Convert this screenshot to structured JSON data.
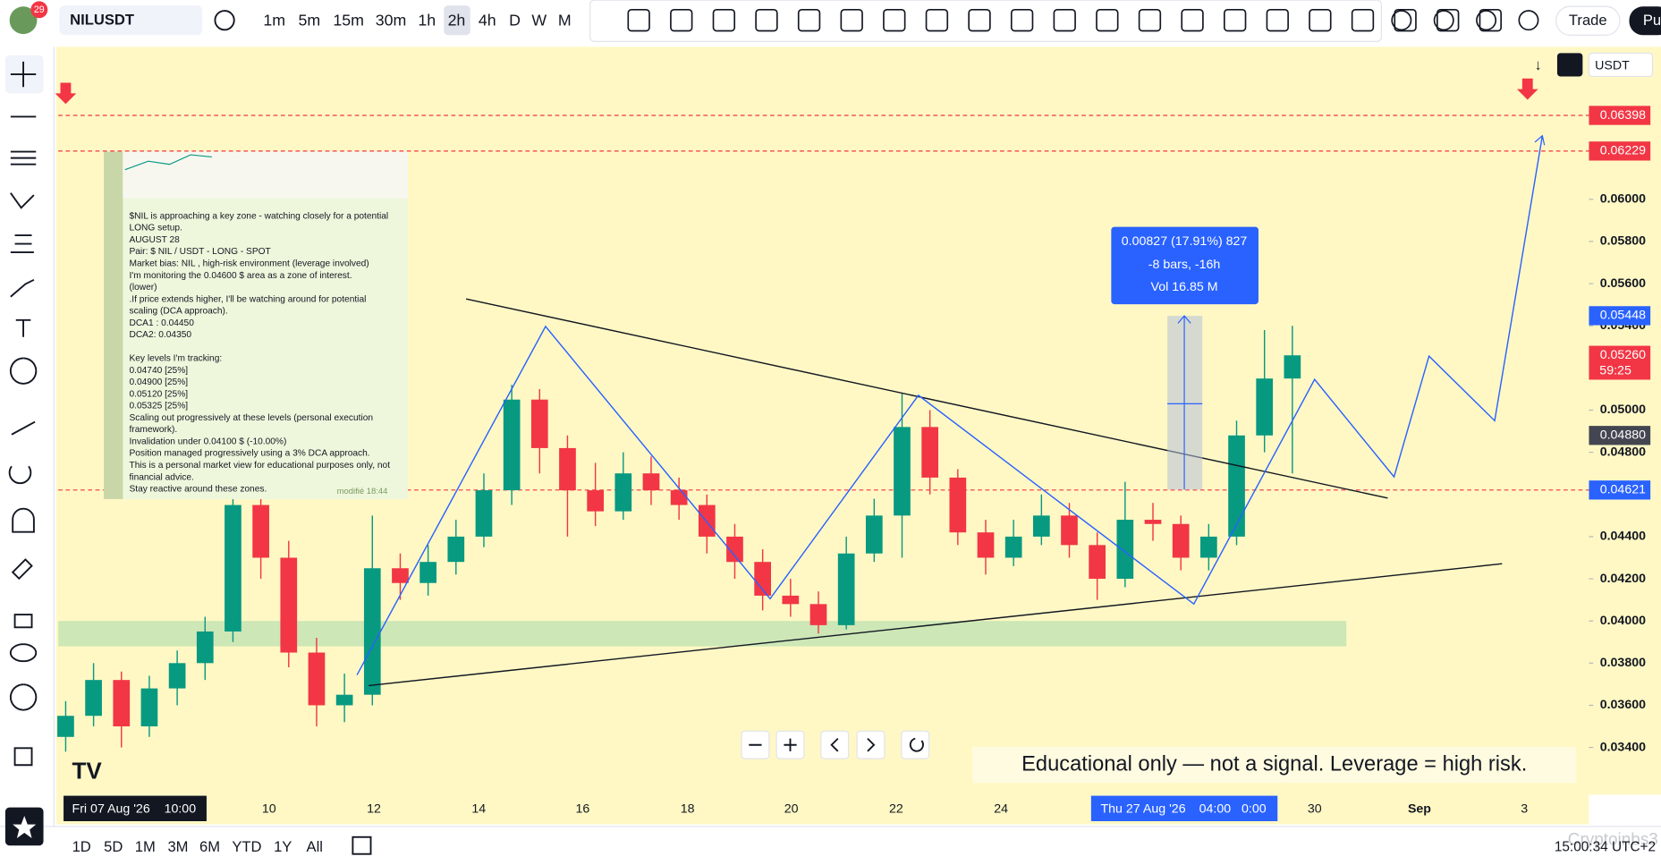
{
  "toolbar": {
    "badge": "29",
    "symbol": "NILUSDT",
    "intervals": [
      "1m",
      "5m",
      "15m",
      "30m",
      "1h",
      "2h",
      "4h",
      "D",
      "W",
      "M"
    ],
    "trade": "Trade",
    "publish": "Pu"
  },
  "chart": {
    "currency": "USDT",
    "price_ticks": [
      {
        "value": 0.06,
        "label": "0.06000"
      },
      {
        "value": 0.058,
        "label": "0.05800"
      },
      {
        "value": 0.056,
        "label": "0.05600"
      },
      {
        "value": 0.054,
        "label": "0.05400"
      },
      {
        "value": 0.05,
        "label": "0.05000"
      },
      {
        "value": 0.048,
        "label": "0.04800"
      },
      {
        "value": 0.044,
        "label": "0.04400"
      },
      {
        "value": 0.042,
        "label": "0.04200"
      },
      {
        "value": 0.04,
        "label": "0.04000"
      },
      {
        "value": 0.038,
        "label": "0.03800"
      },
      {
        "value": 0.036,
        "label": "0.03600"
      },
      {
        "value": 0.034,
        "label": "0.03400"
      }
    ],
    "price_tags": [
      {
        "value": 0.06398,
        "label": "0.06398",
        "color": "#f23645"
      },
      {
        "value": 0.06229,
        "label": "0.06229",
        "color": "#f23645"
      },
      {
        "value": 0.05448,
        "label": "0.05448",
        "color": "#2962ff"
      },
      {
        "value": 0.0526,
        "label": "0.05260",
        "color": "#f23645"
      },
      {
        "value": 0.0488,
        "label": "0.04880",
        "color": "#434651"
      },
      {
        "value": 0.04621,
        "label": "0.04621",
        "color": "#2962ff"
      }
    ],
    "countdown": "59:25",
    "time_labels": [
      "10",
      "12",
      "14",
      "16",
      "18",
      "20",
      "22",
      "24",
      "30",
      "Sep",
      "3"
    ],
    "cursor_left": {
      "date": "Fri 07 Aug '26",
      "time": "10:00"
    },
    "cursor_right": {
      "date": "Thu 27 Aug '26",
      "time": "04:00",
      "extra": "0:00"
    },
    "up_color": "#089981",
    "down_color": "#f23645",
    "candles": [
      [
        0.0345,
        0.0362,
        0.0338,
        0.0355
      ],
      [
        0.0355,
        0.038,
        0.035,
        0.0372
      ],
      [
        0.0372,
        0.0376,
        0.034,
        0.035
      ],
      [
        0.035,
        0.0374,
        0.0345,
        0.0368
      ],
      [
        0.0368,
        0.0386,
        0.036,
        0.038
      ],
      [
        0.038,
        0.0402,
        0.0372,
        0.0395
      ],
      [
        0.0395,
        0.0505,
        0.039,
        0.0455
      ],
      [
        0.0455,
        0.05,
        0.042,
        0.043
      ],
      [
        0.043,
        0.0438,
        0.0378,
        0.0385
      ],
      [
        0.0385,
        0.0392,
        0.035,
        0.036
      ],
      [
        0.036,
        0.0375,
        0.0352,
        0.0365
      ],
      [
        0.0365,
        0.045,
        0.036,
        0.0425
      ],
      [
        0.0425,
        0.0432,
        0.041,
        0.0418
      ],
      [
        0.0418,
        0.0436,
        0.0412,
        0.0428
      ],
      [
        0.0428,
        0.0448,
        0.0422,
        0.044
      ],
      [
        0.044,
        0.047,
        0.0435,
        0.0462
      ],
      [
        0.0462,
        0.0512,
        0.0455,
        0.0505
      ],
      [
        0.0505,
        0.051,
        0.047,
        0.0482
      ],
      [
        0.0482,
        0.0488,
        0.044,
        0.0462
      ],
      [
        0.0462,
        0.0475,
        0.0445,
        0.0452
      ],
      [
        0.0452,
        0.048,
        0.0448,
        0.047
      ],
      [
        0.047,
        0.0478,
        0.0455,
        0.0462
      ],
      [
        0.0462,
        0.0468,
        0.0448,
        0.0455
      ],
      [
        0.0455,
        0.046,
        0.0432,
        0.044
      ],
      [
        0.044,
        0.0446,
        0.042,
        0.0428
      ],
      [
        0.0428,
        0.0434,
        0.0405,
        0.0412
      ],
      [
        0.0412,
        0.042,
        0.0402,
        0.0408
      ],
      [
        0.0408,
        0.0414,
        0.0394,
        0.0398
      ],
      [
        0.0398,
        0.044,
        0.0396,
        0.0432
      ],
      [
        0.0432,
        0.0458,
        0.0428,
        0.045
      ],
      [
        0.045,
        0.0508,
        0.043,
        0.0492
      ],
      [
        0.0492,
        0.05,
        0.046,
        0.0468
      ],
      [
        0.0468,
        0.0472,
        0.0436,
        0.0442
      ],
      [
        0.0442,
        0.0448,
        0.0422,
        0.043
      ],
      [
        0.043,
        0.0448,
        0.0426,
        0.044
      ],
      [
        0.044,
        0.046,
        0.0436,
        0.045
      ],
      [
        0.045,
        0.0456,
        0.043,
        0.0436
      ],
      [
        0.0436,
        0.0442,
        0.041,
        0.042
      ],
      [
        0.042,
        0.0466,
        0.0416,
        0.0448
      ],
      [
        0.0448,
        0.0456,
        0.0438,
        0.0446
      ],
      [
        0.0446,
        0.045,
        0.0424,
        0.043
      ],
      [
        0.043,
        0.0446,
        0.0424,
        0.044
      ],
      [
        0.044,
        0.0495,
        0.0436,
        0.0488
      ],
      [
        0.0488,
        0.0538,
        0.048,
        0.0515
      ],
      [
        0.0515,
        0.054,
        0.047,
        0.0526
      ]
    ],
    "measure": {
      "line1": "0.00827 (17.91%) 827",
      "line2": "-8 bars, -16h",
      "line3": "Vol 16.85 M"
    },
    "note": {
      "lines": [
        "$NIL  is approaching a key zone - watching closely for a potential",
        "LONG setup.",
        "AUGUST 28",
        "Pair: $ NIL / USDT  -  LONG -  SPOT",
        "Market bias: NIL , high-risk environment (leverage involved)",
        "I'm monitoring the 0.04600  $  area as a zone of interest.",
        "(lower)",
        ".If price extends higher, I'll be watching around for potential",
        "scaling (DCA approach).",
        "DCA1 : 0.04450",
        "DCA2:  0.04350",
        "",
        "Key levels I'm tracking:",
        "0.04740  [25%]",
        "0.04900 [25%]",
        "0.05120  [25%]",
        "0.05325  [25%]",
        "Scaling out progressively at these levels (personal execution",
        "framework).",
        "Invalidation under 0.04100  $ (-10.00%)",
        "Position managed progressively using a 3% DCA approach.",
        "This is a personal market view for educational purposes only, not",
        "financial advice.",
        "Stay reactive around these zones."
      ],
      "stamp": "modifié 18:44"
    },
    "disclaimer": "Educational only — not a signal. Leverage  = high risk."
  },
  "bottom": {
    "ranges": [
      "1D",
      "5D",
      "1M",
      "3M",
      "6M",
      "YTD",
      "1Y",
      "All"
    ],
    "clock": "15:00:34 UTC+2",
    "watermark": "Cryptoinbs3"
  }
}
